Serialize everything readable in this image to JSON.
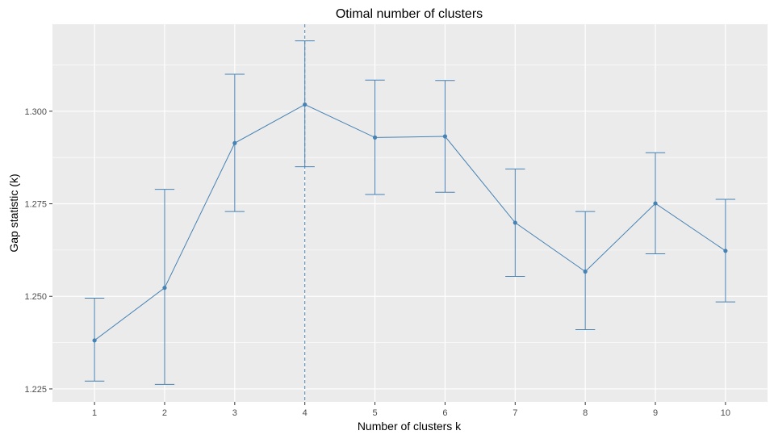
{
  "chart_data": {
    "type": "line",
    "title": "Otimal number of clusters",
    "xlabel": "Number of clusters k",
    "ylabel": "Gap statistic (k)",
    "x": [
      1,
      2,
      3,
      4,
      5,
      6,
      7,
      8,
      9,
      10
    ],
    "x_tick_labels": [
      "1",
      "2",
      "3",
      "4",
      "5",
      "6",
      "7",
      "8",
      "9",
      "10"
    ],
    "series": [
      {
        "values": [
          1.2381,
          1.2523,
          1.2914,
          1.3018,
          1.2929,
          1.2932,
          1.2699,
          1.2567,
          1.2751,
          1.2623
        ],
        "error_low": [
          1.2271,
          1.2262,
          1.2729,
          1.285,
          1.2775,
          1.2781,
          1.2554,
          1.241,
          1.2615,
          1.2485
        ],
        "error_high": [
          1.2495,
          1.2789,
          1.31,
          1.319,
          1.3084,
          1.3083,
          1.2844,
          1.2729,
          1.2888,
          1.2762
        ]
      }
    ],
    "xlim": [
      0.4,
      10.6
    ],
    "ylim": [
      1.2215,
      1.3235
    ],
    "y_ticks": [
      1.225,
      1.25,
      1.275,
      1.3
    ],
    "y_tick_labels": [
      "1.225",
      "1.250",
      "1.275",
      "1.300"
    ],
    "optimal_k": 4,
    "grid": true,
    "colors": {
      "series": "#4682b4",
      "panel_background": "#ebebeb",
      "grid": "#ffffff",
      "tick_label": "#4d4d4d"
    }
  }
}
